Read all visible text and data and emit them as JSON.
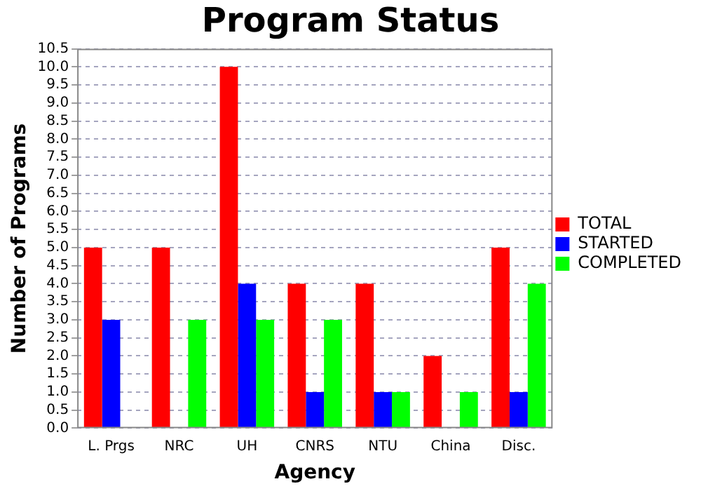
{
  "chart_data": {
    "type": "bar",
    "title": "Program Status",
    "xlabel": "Agency",
    "ylabel": "Number of Programs",
    "categories": [
      "L. Prgs",
      "NRC",
      "UH",
      "CNRS",
      "NTU",
      "China",
      "Disc."
    ],
    "series": [
      {
        "name": "TOTAL",
        "color": "#ff0000",
        "values": [
          5,
          5,
          10,
          4,
          4,
          2,
          5
        ]
      },
      {
        "name": "STARTED",
        "color": "#0000ff",
        "values": [
          3,
          0,
          4,
          1,
          1,
          0,
          1
        ]
      },
      {
        "name": "COMPLETED",
        "color": "#00ff00",
        "values": [
          0,
          3,
          3,
          3,
          1,
          1,
          4
        ]
      }
    ],
    "ylim": [
      0,
      10.5
    ],
    "yticks": [
      {
        "value": 0,
        "label": "0.0"
      },
      {
        "value": 0.5,
        "label": "0.5"
      },
      {
        "value": 1,
        "label": "1.0"
      },
      {
        "value": 1.5,
        "label": "1.5"
      },
      {
        "value": 2,
        "label": "2.0"
      },
      {
        "value": 2.5,
        "label": "2.5"
      },
      {
        "value": 3,
        "label": "3.0"
      },
      {
        "value": 3.5,
        "label": "3.5"
      },
      {
        "value": 4,
        "label": "4.0"
      },
      {
        "value": 4.5,
        "label": "4.5"
      },
      {
        "value": 5,
        "label": "5.0"
      },
      {
        "value": 5.5,
        "label": "5.5"
      },
      {
        "value": 6,
        "label": "6.0"
      },
      {
        "value": 6.5,
        "label": "6.5"
      },
      {
        "value": 7,
        "label": "7.0"
      },
      {
        "value": 7.5,
        "label": "7.5"
      },
      {
        "value": 8,
        "label": "8.0"
      },
      {
        "value": 8.5,
        "label": "8.5"
      },
      {
        "value": 9,
        "label": "9.0"
      },
      {
        "value": 9.5,
        "label": "9.5"
      },
      {
        "value": 10,
        "label": "10.0"
      },
      {
        "value": 10.5,
        "label": "10.5"
      }
    ],
    "grid": "y",
    "legend": "right"
  }
}
